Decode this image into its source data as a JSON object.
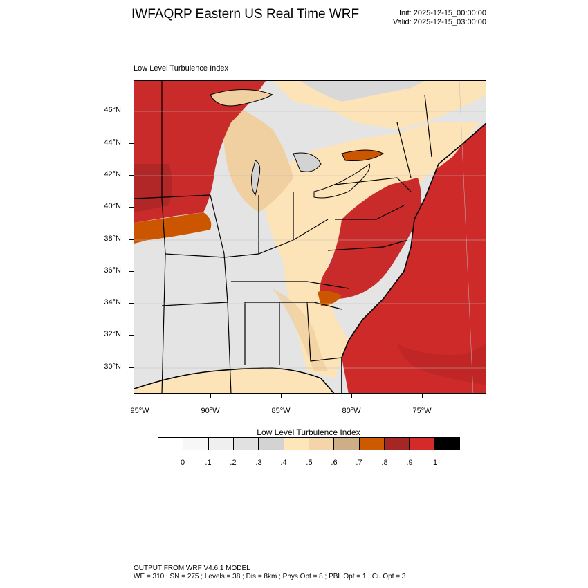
{
  "header": {
    "title": "IWFAQRP Eastern US Real Time WRF",
    "init": "Init: 2025-12-15_00:00:00",
    "valid": "Valid: 2025-12-15_03:00:00"
  },
  "map": {
    "subtitle": "Low Level Turbulence Index",
    "lat_labels": [
      "46°N",
      "44°N",
      "42°N",
      "40°N",
      "38°N",
      "36°N",
      "34°N",
      "32°N",
      "30°N"
    ],
    "lon_labels": [
      "95°W",
      "90°W",
      "85°W",
      "80°W",
      "75°W"
    ],
    "colors": {
      "low": "#e6e6e6",
      "mid_light": "#fde3b8",
      "mid": "#f0cfa0",
      "high": "#cc5500",
      "very_high": "#c92a2a",
      "ocean": "#cf2a2a",
      "boundary": "#000000"
    }
  },
  "colorbar": {
    "title": "Low Level Turbulence Index",
    "colors": [
      "#ffffff",
      "#f7f7f7",
      "#efefef",
      "#e1e1e1",
      "#d3d3d3",
      "#fde6b8",
      "#f4d4a8",
      "#cdae86",
      "#cd5a00",
      "#a62525",
      "#d42a2a",
      "#000000"
    ],
    "labels": [
      "0",
      ".1",
      ".2",
      ".3",
      ".4",
      ".5",
      ".6",
      ".7",
      ".8",
      ".9",
      "1"
    ]
  },
  "footer": {
    "line1": "OUTPUT FROM WRF V4.6.1 MODEL",
    "line2": "WE = 310 ; SN = 275 ; Levels = 38 ; Dis = 8km ; Phys Opt = 8 ; PBL Opt = 1 ; Cu Opt = 3"
  }
}
